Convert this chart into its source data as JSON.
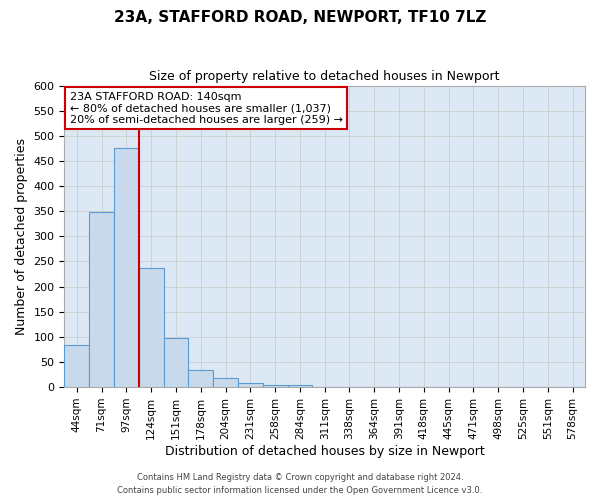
{
  "title": "23A, STAFFORD ROAD, NEWPORT, TF10 7LZ",
  "subtitle": "Size of property relative to detached houses in Newport",
  "xlabel": "Distribution of detached houses by size in Newport",
  "ylabel": "Number of detached properties",
  "bin_labels": [
    "44sqm",
    "71sqm",
    "97sqm",
    "124sqm",
    "151sqm",
    "178sqm",
    "204sqm",
    "231sqm",
    "258sqm",
    "284sqm",
    "311sqm",
    "338sqm",
    "364sqm",
    "391sqm",
    "418sqm",
    "445sqm",
    "471sqm",
    "498sqm",
    "525sqm",
    "551sqm",
    "578sqm"
  ],
  "bin_values": [
    83,
    348,
    475,
    237,
    97,
    35,
    18,
    8,
    5,
    5,
    0,
    1,
    0,
    0,
    1,
    0,
    0,
    1,
    0,
    0,
    1
  ],
  "ylim": [
    0,
    600
  ],
  "yticks": [
    0,
    50,
    100,
    150,
    200,
    250,
    300,
    350,
    400,
    450,
    500,
    550,
    600
  ],
  "bar_color": "#c8d9eb",
  "bar_edge_color": "#5b9bd5",
  "grid_color": "#cccccc",
  "bg_color": "#dce9f5",
  "red_line_x": 2.5,
  "annotation_line1": "23A STAFFORD ROAD: 140sqm",
  "annotation_line2": "← 80% of detached houses are smaller (1,037)",
  "annotation_line3": "20% of semi-detached houses are larger (259) →",
  "annotation_box_facecolor": "#ffffff",
  "annotation_box_edgecolor": "#cc0000",
  "footer1": "Contains HM Land Registry data © Crown copyright and database right 2024.",
  "footer2": "Contains public sector information licensed under the Open Government Licence v3.0."
}
